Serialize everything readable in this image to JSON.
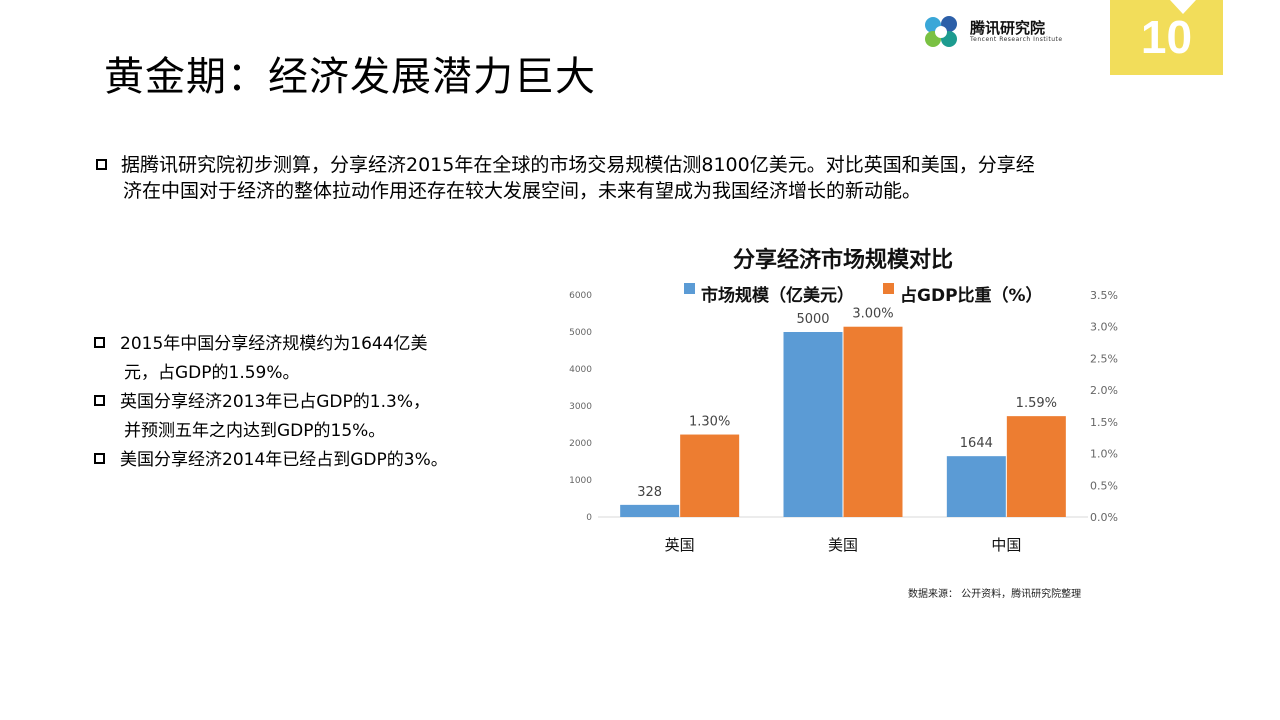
{
  "header": {
    "title": "黄金期：经济发展潜力巨大",
    "logo_text": "腾讯研究院",
    "logo_subtext": "Tencent Research Institute",
    "page_number": "10"
  },
  "main_bullet": {
    "line1": "据腾讯研究院初步测算，分享经济2015年在全球的市场交易规模估测8100亿美元。对比英国和美国，分享经",
    "line2": "济在中国对于经济的整体拉动作用还存在较大发展空间，未来有望成为我国经济增长的新动能。"
  },
  "side_bullets": [
    {
      "line1": "2015年中国分享经济规模约为1644亿美",
      "line2": "元，占GDP的1.59%。"
    },
    {
      "line1": "英国分享经济2013年已占GDP的1.3%，",
      "line2": "并预测五年之内达到GDP的15%。"
    },
    {
      "line1": "美国分享经济2014年已经占到GDP的3%。",
      "line2": ""
    }
  ],
  "source_note": "数据来源：  公开资料，腾讯研究院整理",
  "colors": {
    "blue": "#5b9bd5",
    "orange": "#ed7d31",
    "accent_yellow": "#f2dd5a"
  },
  "chart_data": {
    "type": "bar",
    "title": "分享经济市场规模对比",
    "categories": [
      "英国",
      "美国",
      "中国"
    ],
    "series": [
      {
        "name": "市场规模（亿美元）",
        "axis": "left",
        "values": [
          328,
          5000,
          1644
        ],
        "labels": [
          "328",
          "5000",
          "1644"
        ]
      },
      {
        "name": "占GDP比重（%）",
        "axis": "right",
        "values": [
          1.3,
          3.0,
          1.59
        ],
        "labels": [
          "1.30%",
          "3.00%",
          "1.59%"
        ]
      }
    ],
    "left_axis": {
      "ylim": [
        0,
        6000
      ],
      "ticks": [
        "0",
        "1000",
        "2000",
        "3000",
        "4000",
        "5000",
        "6000"
      ]
    },
    "right_axis": {
      "ylim": [
        0,
        3.5
      ],
      "ticks": [
        "0.0%",
        "0.5%",
        "1.0%",
        "1.5%",
        "2.0%",
        "2.5%",
        "3.0%",
        "3.5%"
      ]
    },
    "legend_position": "top",
    "grid": false
  }
}
